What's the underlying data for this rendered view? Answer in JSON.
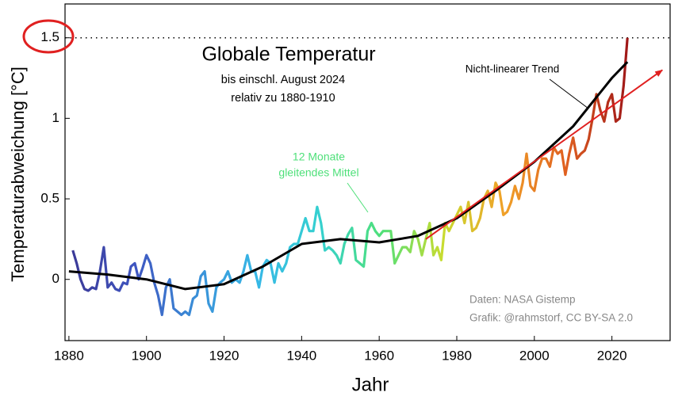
{
  "chart_data": {
    "type": "line",
    "title": "Globale Temperatur",
    "subtitle": [
      "bis einschl. August 2024",
      "relativ zu 1880-1910"
    ],
    "x_label": "Jahr",
    "y_label": "Temperaturabweichung [°C]",
    "annotations": {
      "running_mean": [
        "12 Monate",
        "gleitendes Mittel"
      ],
      "trend": "Nicht-linearer Trend",
      "source": [
        "Daten: NASA Gistemp",
        "Grafik: @rahmstorf, CC BY-SA 2.0"
      ]
    },
    "xlim": [
      1879,
      2035
    ],
    "xticks": [
      1880,
      1900,
      1920,
      1940,
      1960,
      1980,
      2000,
      2020
    ],
    "ylim": [
      -0.38,
      1.71
    ],
    "yticks": [
      0,
      0.5,
      1,
      1.5
    ],
    "hline": 1.5,
    "series": [
      {
        "gradient": [
          "#3b3a98",
          "#3f55c0",
          "#3a8fd8",
          "#36b8e6",
          "#35d0d0",
          "#4fe07a",
          "#c8dc30",
          "#f0a028",
          "#e06020",
          "#a01818"
        ],
        "x": [
          1881,
          1882,
          1883,
          1884,
          1885,
          1886,
          1887,
          1888,
          1889,
          1890,
          1891,
          1892,
          1893,
          1894,
          1895,
          1896,
          1897,
          1898,
          1899,
          1900,
          1901,
          1902,
          1903,
          1904,
          1905,
          1906,
          1907,
          1908,
          1909,
          1910,
          1911,
          1912,
          1913,
          1914,
          1915,
          1916,
          1917,
          1918,
          1919,
          1920,
          1921,
          1922,
          1923,
          1924,
          1925,
          1926,
          1927,
          1928,
          1929,
          1930,
          1931,
          1932,
          1933,
          1934,
          1935,
          1936,
          1937,
          1938,
          1939,
          1940,
          1941,
          1942,
          1943,
          1944,
          1945,
          1946,
          1947,
          1948,
          1949,
          1950,
          1951,
          1952,
          1953,
          1954,
          1955,
          1956,
          1957,
          1958,
          1959,
          1960,
          1961,
          1962,
          1963,
          1964,
          1965,
          1966,
          1967,
          1968,
          1969,
          1970,
          1971,
          1972,
          1973,
          1974,
          1975,
          1976,
          1977,
          1978,
          1979,
          1980,
          1981,
          1982,
          1983,
          1984,
          1985,
          1986,
          1987,
          1988,
          1989,
          1990,
          1991,
          1992,
          1993,
          1994,
          1995,
          1996,
          1997,
          1998,
          1999,
          2000,
          2001,
          2002,
          2003,
          2004,
          2005,
          2006,
          2007,
          2008,
          2009,
          2010,
          2011,
          2012,
          2013,
          2014,
          2015,
          2016,
          2017,
          2018,
          2019,
          2020,
          2021,
          2022,
          2023,
          2024
        ],
        "values": [
          0.18,
          0.1,
          0.0,
          -0.06,
          -0.07,
          -0.05,
          -0.06,
          0.05,
          0.2,
          -0.05,
          -0.02,
          -0.06,
          -0.07,
          -0.02,
          -0.03,
          0.08,
          0.1,
          0.0,
          0.07,
          0.15,
          0.1,
          -0.02,
          -0.1,
          -0.22,
          -0.05,
          0.0,
          -0.18,
          -0.2,
          -0.22,
          -0.2,
          -0.22,
          -0.12,
          -0.1,
          0.02,
          0.05,
          -0.15,
          -0.2,
          -0.05,
          -0.02,
          0.0,
          0.05,
          -0.02,
          0.0,
          -0.02,
          0.05,
          0.15,
          0.05,
          0.05,
          -0.05,
          0.08,
          0.12,
          0.1,
          -0.02,
          0.1,
          0.05,
          0.1,
          0.2,
          0.22,
          0.22,
          0.3,
          0.38,
          0.3,
          0.3,
          0.45,
          0.35,
          0.18,
          0.2,
          0.18,
          0.15,
          0.1,
          0.22,
          0.28,
          0.32,
          0.12,
          0.1,
          0.08,
          0.3,
          0.35,
          0.3,
          0.27,
          0.3,
          0.3,
          0.3,
          0.1,
          0.15,
          0.2,
          0.2,
          0.17,
          0.3,
          0.25,
          0.15,
          0.25,
          0.35,
          0.15,
          0.2,
          0.12,
          0.35,
          0.3,
          0.35,
          0.4,
          0.45,
          0.35,
          0.48,
          0.3,
          0.32,
          0.38,
          0.5,
          0.55,
          0.45,
          0.6,
          0.55,
          0.4,
          0.42,
          0.48,
          0.58,
          0.5,
          0.6,
          0.78,
          0.58,
          0.55,
          0.68,
          0.75,
          0.75,
          0.7,
          0.82,
          0.78,
          0.8,
          0.65,
          0.78,
          0.88,
          0.75,
          0.78,
          0.8,
          0.87,
          1.0,
          1.15,
          1.05,
          0.98,
          1.1,
          1.15,
          0.98,
          1.0,
          1.2,
          1.5
        ]
      },
      {
        "color": "#000000",
        "x": [
          1880,
          1890,
          1900,
          1910,
          1920,
          1930,
          1940,
          1950,
          1960,
          1970,
          1980,
          1990,
          2000,
          2010,
          2020,
          2024
        ],
        "values": [
          0.05,
          0.03,
          0.0,
          -0.06,
          -0.03,
          0.08,
          0.22,
          0.25,
          0.23,
          0.27,
          0.38,
          0.55,
          0.73,
          0.95,
          1.25,
          1.35
        ]
      },
      {
        "color": "#e02020",
        "x": [
          1972,
          2033
        ],
        "values": [
          0.25,
          1.3
        ]
      }
    ]
  }
}
